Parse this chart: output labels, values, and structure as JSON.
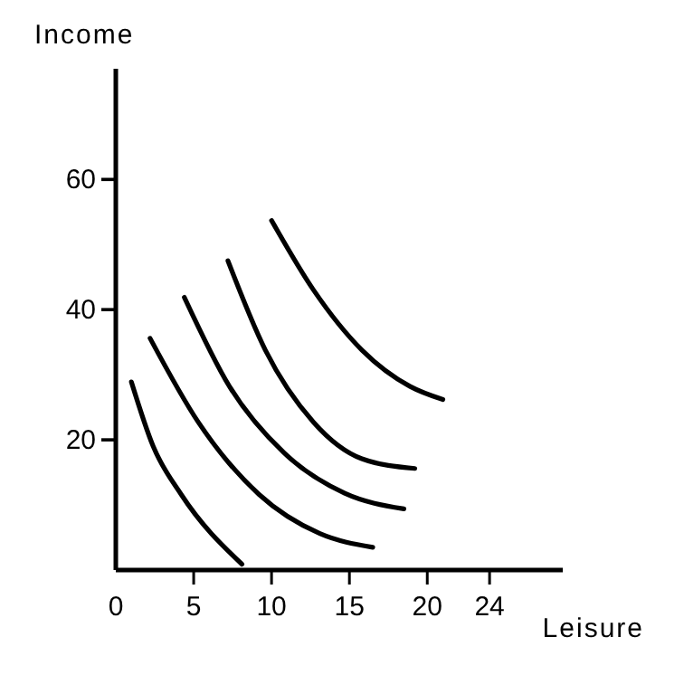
{
  "chart_data": {
    "type": "line",
    "xlabel": "Leisure",
    "ylabel": "Income",
    "xlim": [
      0,
      28.7
    ],
    "ylim": [
      0,
      77
    ],
    "xticks": [
      0,
      5,
      10,
      15,
      20,
      24
    ],
    "yticks": [
      {
        "value": 20,
        "label": "20"
      },
      {
        "value": 40,
        "label": "40"
      },
      {
        "value": 60,
        "label": "60"
      }
    ],
    "grid": false,
    "marker": "none",
    "line_style": "solid",
    "series": [
      {
        "color": "#000000",
        "x": [
          1.0,
          2.4,
          4.2,
          8.1
        ],
        "values": [
          28.9,
          19,
          11.6,
          0.9
        ]
      },
      {
        "color": "#000000",
        "x": [
          2.2,
          5.3,
          9.2,
          13.1,
          16.5
        ],
        "values": [
          35.6,
          22.7,
          11.6,
          5.6,
          3.5
        ]
      },
      {
        "color": "#000000",
        "x": [
          4.4,
          7.3,
          10.8,
          14.7,
          18.5
        ],
        "values": [
          41.9,
          28.2,
          18,
          11.8,
          9.4
        ]
      },
      {
        "color": "#000000",
        "x": [
          7.2,
          9.6,
          12.7,
          15.8,
          19.2
        ],
        "values": [
          47.5,
          33.8,
          22.7,
          17.1,
          15.6
        ]
      },
      {
        "color": "#000000",
        "x": [
          10,
          12.7,
          15.8,
          18.9,
          21
        ],
        "values": [
          53.7,
          43,
          33.8,
          28.2,
          26.2
        ]
      }
    ]
  }
}
